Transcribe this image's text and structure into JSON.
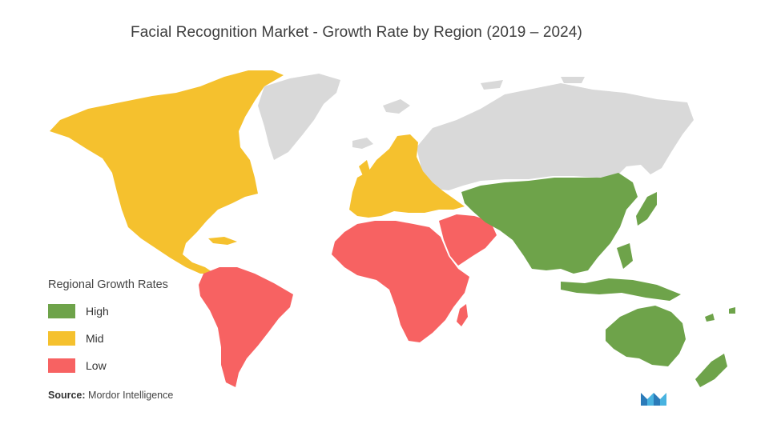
{
  "title": "Facial Recognition Market  - Growth Rate by Region (2019 – 2024)",
  "legend": {
    "title": "Regional Growth Rates",
    "items": [
      {
        "label": "High",
        "color": "#6ea34a"
      },
      {
        "label": "Mid",
        "color": "#f5c12e"
      },
      {
        "label": "Low",
        "color": "#f76262"
      }
    ]
  },
  "source": {
    "prefix": "Source:",
    "text": "Mordor Intelligence"
  },
  "colors": {
    "high": "#6ea34a",
    "mid": "#f5c12e",
    "low": "#f76262",
    "no_data": "#d9d9d9"
  },
  "regions": [
    {
      "name": "North America",
      "rate": "Mid"
    },
    {
      "name": "Europe",
      "rate": "Mid"
    },
    {
      "name": "Asia-Pacific",
      "rate": "High"
    },
    {
      "name": "South America",
      "rate": "Low"
    },
    {
      "name": "Africa",
      "rate": "Low"
    },
    {
      "name": "Middle East",
      "rate": "Low"
    }
  ],
  "logo_icon": "mordor-intelligence-logo-icon"
}
